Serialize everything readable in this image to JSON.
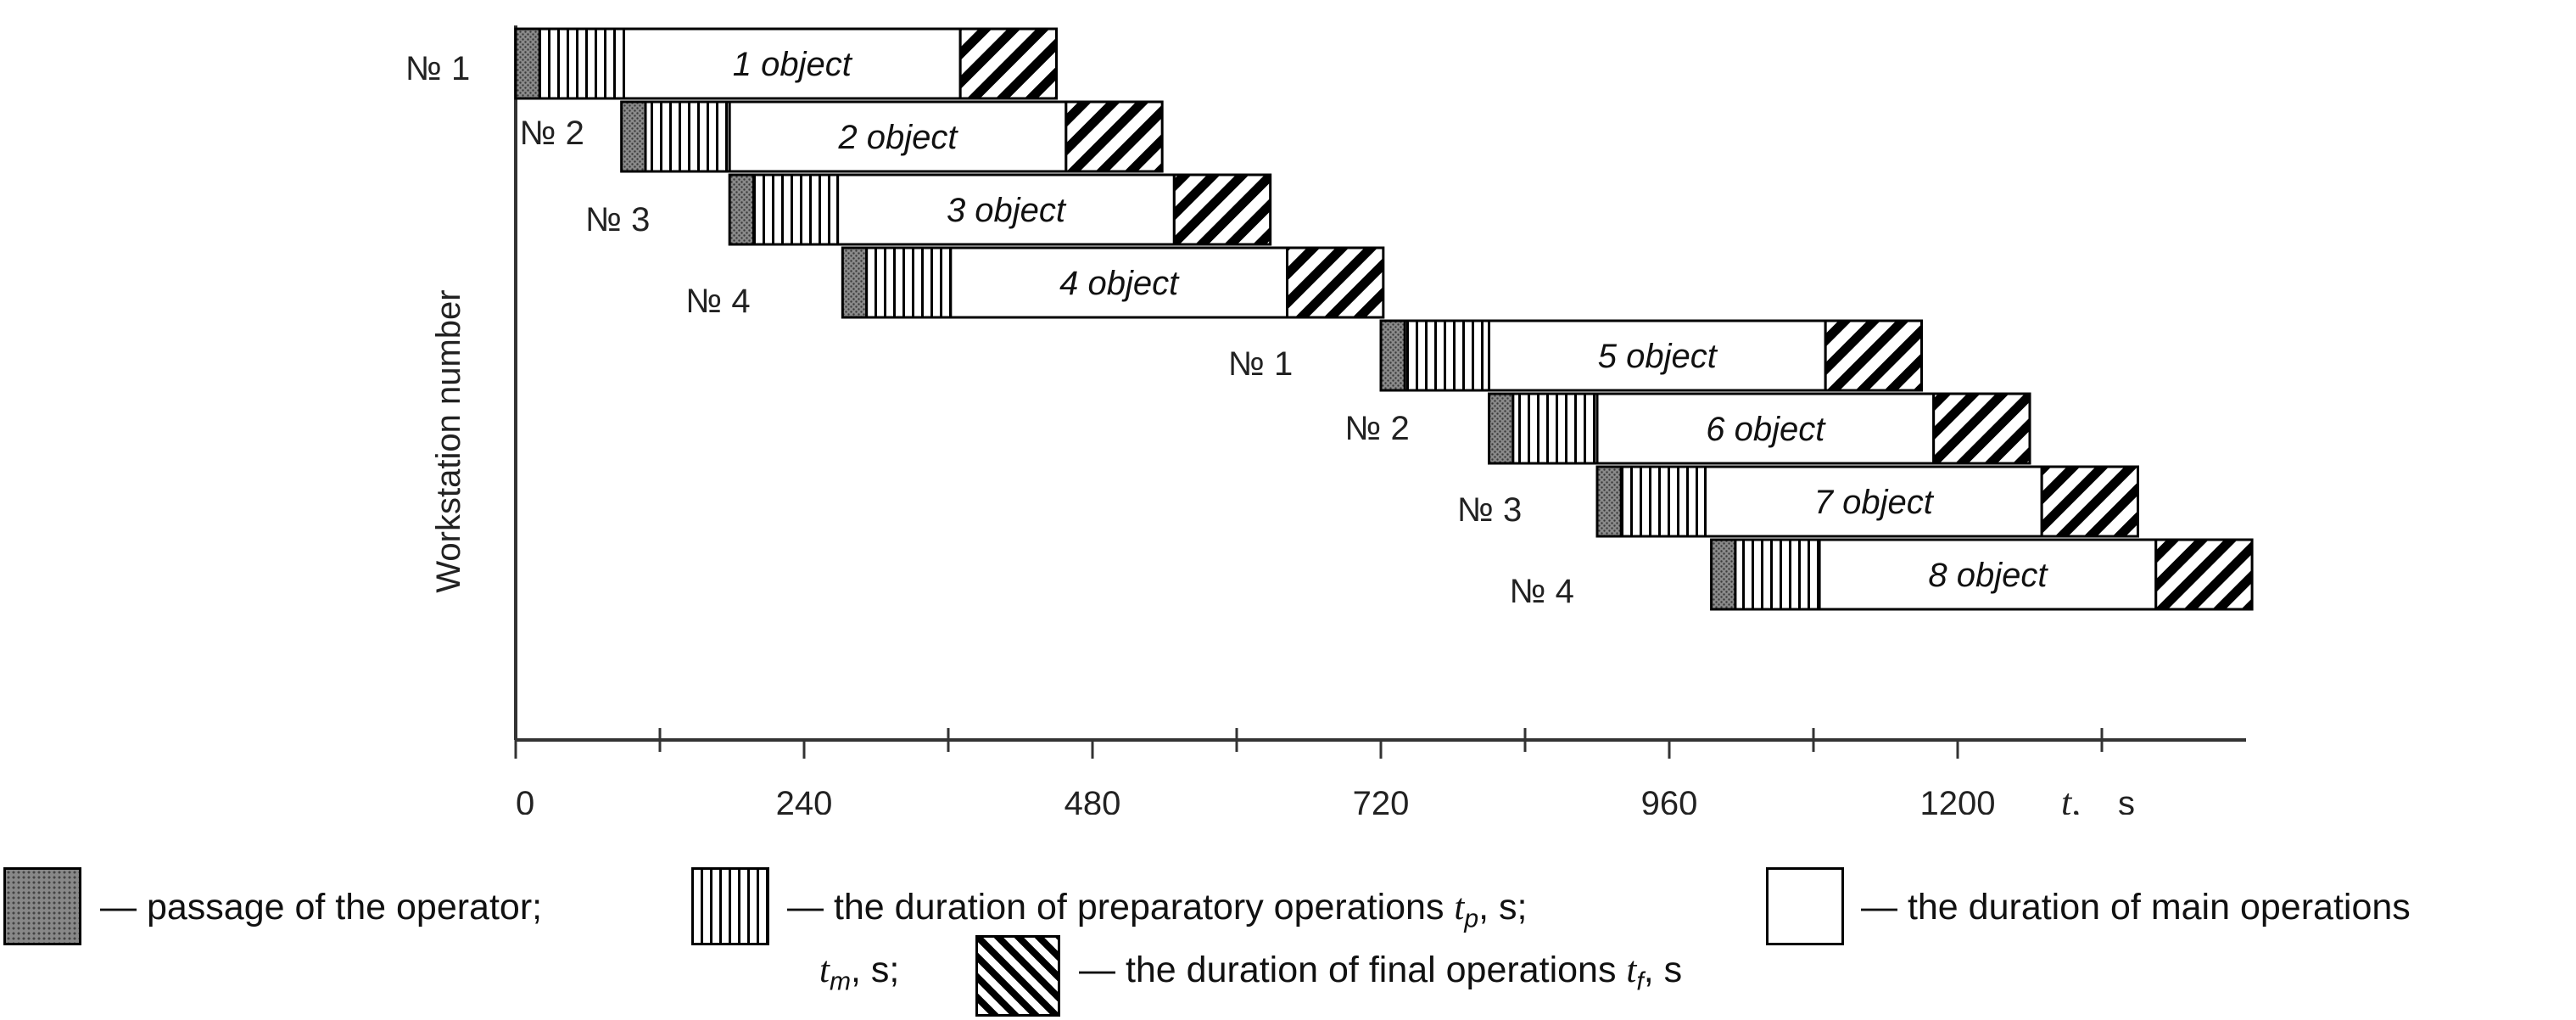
{
  "chart_data": {
    "type": "gantt",
    "xlabel_symbol": "t,",
    "xlabel_unit": "s",
    "ylabel": "Workstation number",
    "xlim": [
      0,
      1440
    ],
    "x_ticks": [
      0,
      240,
      480,
      720,
      960,
      1200
    ],
    "x_minor_ticks": [
      120,
      360,
      600,
      840,
      1080,
      1320
    ],
    "bars": [
      {
        "workstation": "№ 1",
        "label": "1 object",
        "start": 0,
        "passage": 20,
        "prep": 70,
        "main": 280,
        "final": 80
      },
      {
        "workstation": "№ 2",
        "label": "2 object",
        "start": 88,
        "passage": 20,
        "prep": 70,
        "main": 280,
        "final": 80
      },
      {
        "workstation": "№ 3",
        "label": "3 object",
        "start": 178,
        "passage": 20,
        "prep": 70,
        "main": 280,
        "final": 80
      },
      {
        "workstation": "№ 4",
        "label": "4 object",
        "start": 272,
        "passage": 20,
        "prep": 70,
        "main": 280,
        "final": 80
      },
      {
        "workstation": "№ 1",
        "label": "5 object",
        "start": 720,
        "passage": 20,
        "prep": 70,
        "main": 280,
        "final": 80
      },
      {
        "workstation": "№ 2",
        "label": "6 object",
        "start": 810,
        "passage": 20,
        "prep": 70,
        "main": 280,
        "final": 80
      },
      {
        "workstation": "№ 3",
        "label": "7 object",
        "start": 900,
        "passage": 20,
        "prep": 70,
        "main": 280,
        "final": 80
      },
      {
        "workstation": "№ 4",
        "label": "8 object",
        "start": 995,
        "passage": 20,
        "prep": 70,
        "main": 280,
        "final": 80
      }
    ],
    "legend": [
      {
        "key": "passage",
        "text": "— passage of the operator;"
      },
      {
        "key": "prep",
        "text_before": "— the duration of preparatory operations ",
        "symbol": "t",
        "sub": "p",
        "text_after": ", s;"
      },
      {
        "key": "main",
        "text": "— the duration of main operations"
      },
      {
        "key": "main_cont",
        "symbol": "t",
        "sub": "m",
        "text_after": ", s;"
      },
      {
        "key": "final",
        "text_before": "— the duration of final operations ",
        "symbol": "t",
        "sub": "f",
        "text_after": ", s"
      }
    ],
    "colors": {
      "passage": "#888888",
      "prep_lines": "#000000",
      "main": "#ffffff",
      "final_hatch": "#000000",
      "axis": "#333333"
    }
  }
}
